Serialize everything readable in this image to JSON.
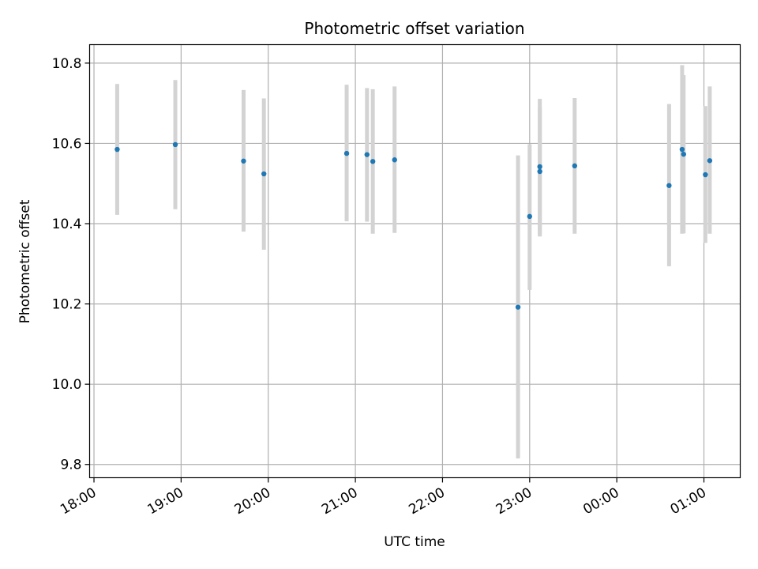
{
  "chart_data": {
    "type": "scatter",
    "title": "Photometric offset variation",
    "xlabel": "UTC time",
    "ylabel": "Photometric offset",
    "x_unit": "hours",
    "xlim": [
      "17:57",
      "01:25"
    ],
    "ylim": [
      9.767,
      10.846
    ],
    "x_ticks": [
      "18:00",
      "19:00",
      "20:00",
      "21:00",
      "22:00",
      "23:00",
      "00:00",
      "01:00"
    ],
    "y_ticks": [
      "9.8",
      "10.0",
      "10.2",
      "10.4",
      "10.6",
      "10.8"
    ],
    "grid": true,
    "colors": {
      "point": "#1f77b4",
      "errorbar": "#d3d3d3",
      "grid": "#b0b0b0"
    },
    "series": [
      {
        "points": [
          {
            "x": "18:16",
            "y": 10.585,
            "y_lo": 10.422,
            "y_hi": 10.748
          },
          {
            "x": "18:56",
            "y": 10.597,
            "y_lo": 10.436,
            "y_hi": 10.758
          },
          {
            "x": "19:43",
            "y": 10.556,
            "y_lo": 10.38,
            "y_hi": 10.733
          },
          {
            "x": "19:57",
            "y": 10.524,
            "y_lo": 10.335,
            "y_hi": 10.712
          },
          {
            "x": "20:54",
            "y": 10.575,
            "y_lo": 10.406,
            "y_hi": 10.746
          },
          {
            "x": "21:08",
            "y": 10.572,
            "y_lo": 10.405,
            "y_hi": 10.738
          },
          {
            "x": "21:12",
            "y": 10.555,
            "y_lo": 10.375,
            "y_hi": 10.735
          },
          {
            "x": "21:27",
            "y": 10.559,
            "y_lo": 10.377,
            "y_hi": 10.742
          },
          {
            "x": "22:52",
            "y": 10.192,
            "y_lo": 9.815,
            "y_hi": 10.57
          },
          {
            "x": "23:00",
            "y": 10.418,
            "y_lo": 10.235,
            "y_hi": 10.598
          },
          {
            "x": "23:07",
            "y": 10.53,
            "y_lo": 10.368,
            "y_hi": 10.69
          },
          {
            "x": "23:07",
            "y": 10.542,
            "y_lo": 10.372,
            "y_hi": 10.711
          },
          {
            "x": "23:31",
            "y": 10.544,
            "y_lo": 10.375,
            "y_hi": 10.713
          },
          {
            "x": "00:36",
            "y": 10.495,
            "y_lo": 10.294,
            "y_hi": 10.698
          },
          {
            "x": "00:45",
            "y": 10.585,
            "y_lo": 10.375,
            "y_hi": 10.795
          },
          {
            "x": "00:46",
            "y": 10.573,
            "y_lo": 10.376,
            "y_hi": 10.77
          },
          {
            "x": "01:01",
            "y": 10.522,
            "y_lo": 10.352,
            "y_hi": 10.693
          },
          {
            "x": "01:04",
            "y": 10.557,
            "y_lo": 10.375,
            "y_hi": 10.742
          }
        ]
      }
    ]
  }
}
